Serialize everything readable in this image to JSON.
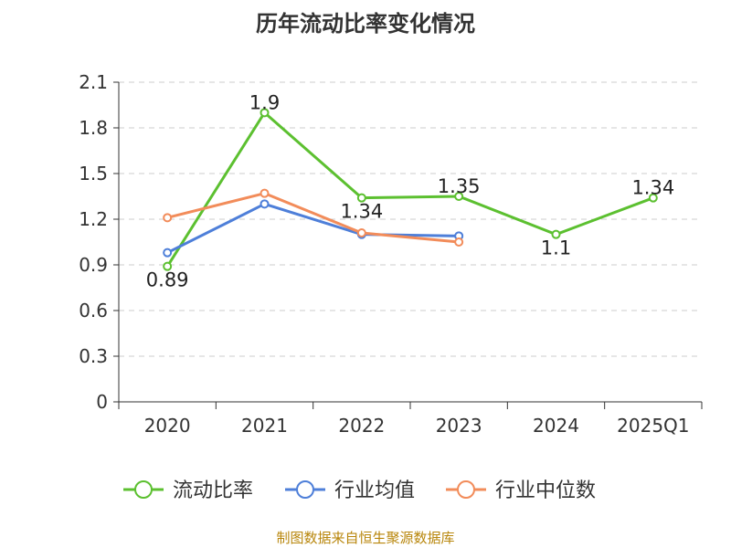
{
  "chart_data": {
    "type": "line",
    "title": "历年流动比率变化情况",
    "categories": [
      "2020",
      "2021",
      "2022",
      "2023",
      "2024",
      "2025Q1"
    ],
    "ylim": [
      0,
      2.1
    ],
    "yticks": [
      "0",
      "0.3",
      "0.6",
      "0.9",
      "1.2",
      "1.5",
      "1.8",
      "2.1"
    ],
    "grid": true,
    "legend_position": "bottom",
    "series": [
      {
        "name": "流动比率",
        "color": "#5cc030",
        "values": [
          0.89,
          1.9,
          1.34,
          1.35,
          1.1,
          1.34
        ],
        "labels": [
          "0.89",
          "1.9",
          "1.34",
          "1.35",
          "1.1",
          "1.34"
        ]
      },
      {
        "name": "行业均值",
        "color": "#4e7fd9",
        "values": [
          0.98,
          1.3,
          1.1,
          1.09,
          null,
          null
        ]
      },
      {
        "name": "行业中位数",
        "color": "#f28c5a",
        "values": [
          1.21,
          1.37,
          1.11,
          1.05,
          null,
          null
        ]
      }
    ]
  },
  "footer": {
    "source": "制图数据来自恒生聚源数据库"
  }
}
